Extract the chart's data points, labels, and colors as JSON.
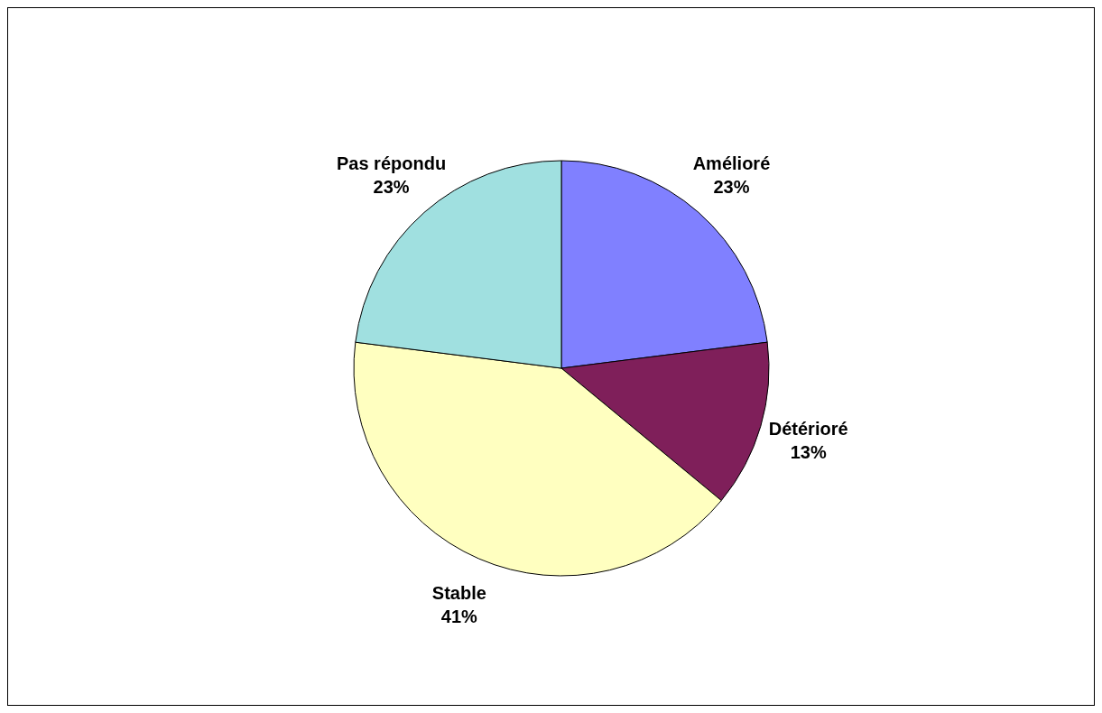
{
  "chart_data": {
    "type": "pie",
    "categories": [
      "Amélioré",
      "Détérioré",
      "Stable",
      "Pas répondu"
    ],
    "values": [
      23,
      13,
      41,
      23
    ],
    "colors": [
      "#8080ff",
      "#7f1f5a",
      "#ffffc0",
      "#a0e0e0"
    ],
    "value_labels": [
      "23%",
      "13%",
      "41%",
      "23%"
    ]
  }
}
